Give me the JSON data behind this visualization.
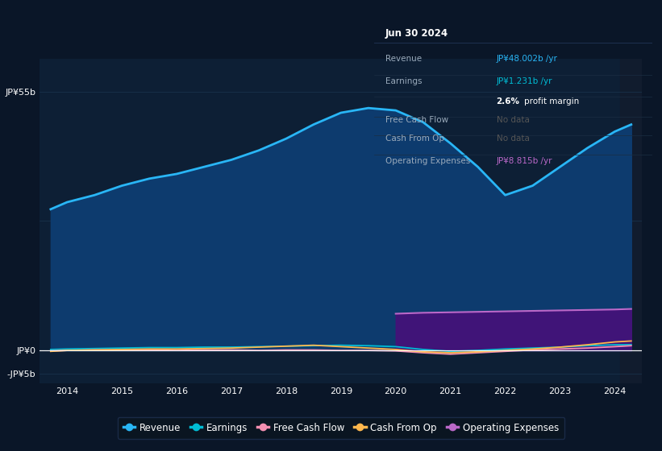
{
  "background_color": "#0a1628",
  "plot_bg_color": "#0d1f35",
  "forecast_bg_color": "#111c2e",
  "grid_color": "#1a3550",
  "years": [
    2013.7,
    2014.0,
    2014.5,
    2015.0,
    2015.5,
    2016.0,
    2016.5,
    2017.0,
    2017.5,
    2018.0,
    2018.5,
    2019.0,
    2019.5,
    2020.0,
    2020.5,
    2021.0,
    2021.5,
    2022.0,
    2022.5,
    2023.0,
    2023.5,
    2024.0,
    2024.3
  ],
  "revenue": [
    30.0,
    31.5,
    33.0,
    35.0,
    36.5,
    37.5,
    39.0,
    40.5,
    42.5,
    45.0,
    48.0,
    50.5,
    51.5,
    51.0,
    48.5,
    44.0,
    39.0,
    33.0,
    35.0,
    39.0,
    43.0,
    46.5,
    48.0
  ],
  "earnings": [
    0.2,
    0.3,
    0.4,
    0.5,
    0.6,
    0.6,
    0.7,
    0.7,
    0.8,
    0.9,
    1.0,
    1.1,
    1.0,
    0.8,
    0.2,
    -0.2,
    0.0,
    0.3,
    0.5,
    0.7,
    1.0,
    1.2,
    1.23
  ],
  "free_cash_flow": [
    -0.1,
    0.0,
    0.1,
    0.1,
    0.1,
    0.0,
    0.1,
    0.1,
    0.0,
    0.1,
    0.1,
    0.0,
    0.0,
    -0.1,
    -0.5,
    -0.8,
    -0.5,
    -0.2,
    0.1,
    0.3,
    0.5,
    0.8,
    1.0
  ],
  "cash_from_op": [
    -0.2,
    0.0,
    0.1,
    0.2,
    0.3,
    0.3,
    0.4,
    0.5,
    0.7,
    0.9,
    1.1,
    0.8,
    0.5,
    0.2,
    -0.3,
    -0.5,
    -0.3,
    0.0,
    0.3,
    0.7,
    1.2,
    1.8,
    2.0
  ],
  "op_exp_years": [
    2020.0,
    2020.5,
    2021.0,
    2021.5,
    2022.0,
    2022.5,
    2023.0,
    2023.5,
    2024.0,
    2024.3
  ],
  "op_exp_vals": [
    7.8,
    8.0,
    8.1,
    8.2,
    8.3,
    8.4,
    8.5,
    8.6,
    8.7,
    8.815
  ],
  "revenue_color": "#29b6f6",
  "earnings_color": "#00bcd4",
  "free_cash_flow_color": "#f48fb1",
  "cash_from_op_color": "#ffb74d",
  "operating_expenses_color": "#ba68c8",
  "revenue_fill_color": "#0d3b6e",
  "op_exp_fill_color": "#4a0e7a",
  "ytick_labels": [
    "JP¥55b",
    "JP¥0",
    "-JP¥5b"
  ],
  "ytick_values": [
    55,
    0,
    -5
  ],
  "xtick_labels": [
    "2014",
    "2015",
    "2016",
    "2017",
    "2018",
    "2019",
    "2020",
    "2021",
    "2022",
    "2023",
    "2024"
  ],
  "xtick_values": [
    2014,
    2015,
    2016,
    2017,
    2018,
    2019,
    2020,
    2021,
    2022,
    2023,
    2024
  ],
  "xlim": [
    2013.5,
    2024.5
  ],
  "ylim": [
    -7,
    62
  ],
  "panel_title": "Jun 30 2024",
  "panel_bg": "#050d18",
  "panel_rows": [
    {
      "label": "Revenue",
      "value": "JP¥48.002b /yr",
      "value_color": "#29b6f6"
    },
    {
      "label": "Earnings",
      "value": "JP¥1.231b /yr",
      "value_color": "#00bcd4"
    },
    {
      "label": "",
      "value": "2.6% profit margin",
      "value_color": "#ffffff",
      "bold_part": "2.6%"
    },
    {
      "label": "Free Cash Flow",
      "value": "No data",
      "value_color": "#555555"
    },
    {
      "label": "Cash From Op",
      "value": "No data",
      "value_color": "#555555"
    },
    {
      "label": "Operating Expenses",
      "value": "JP¥8.815b /yr",
      "value_color": "#ba68c8"
    }
  ],
  "legend_items": [
    {
      "label": "Revenue",
      "color": "#29b6f6"
    },
    {
      "label": "Earnings",
      "color": "#00bcd4"
    },
    {
      "label": "Free Cash Flow",
      "color": "#f48fb1"
    },
    {
      "label": "Cash From Op",
      "color": "#ffb74d"
    },
    {
      "label": "Operating Expenses",
      "color": "#ba68c8"
    }
  ]
}
